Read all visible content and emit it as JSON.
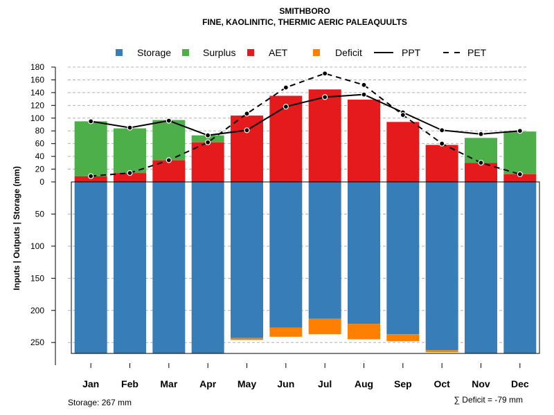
{
  "chart_data": {
    "type": "bar",
    "title": "SMITHBORO",
    "subtitle": "FINE, KAOLINITIC, THERMIC AERIC PALEAQUULTS",
    "ylabel": "Inputs | Outputs | Storage     (mm)",
    "categories": [
      "Jan",
      "Feb",
      "Mar",
      "Apr",
      "May",
      "Jun",
      "Jul",
      "Aug",
      "Sep",
      "Oct",
      "Nov",
      "Dec"
    ],
    "upper_ylim": [
      0,
      180
    ],
    "upper_ticks": [
      0,
      20,
      40,
      60,
      80,
      100,
      120,
      140,
      160,
      180
    ],
    "lower_ylim": [
      0,
      267
    ],
    "lower_ticks": [
      50,
      100,
      150,
      200,
      250
    ],
    "series": [
      {
        "name": "Storage",
        "color": "#377EB8",
        "values": [
          267,
          267,
          267,
          267,
          243,
          227,
          213,
          221,
          237,
          262,
          267,
          267
        ]
      },
      {
        "name": "Surplus",
        "color": "#4DAF4A",
        "values": [
          86,
          70,
          63,
          11,
          0,
          0,
          0,
          0,
          0,
          0,
          39,
          67
        ]
      },
      {
        "name": "AET",
        "color": "#E41A1C",
        "values": [
          9,
          14,
          34,
          62,
          104,
          135,
          145,
          129,
          94,
          58,
          30,
          12
        ]
      },
      {
        "name": "Deficit",
        "color": "#FF7F00",
        "values": [
          0,
          0,
          0,
          0,
          3,
          14,
          24,
          24,
          11,
          3,
          0,
          0
        ]
      },
      {
        "name": "PPT",
        "color": "#000000",
        "line": "solid",
        "values": [
          95,
          85,
          96,
          73,
          81,
          118,
          133,
          137,
          109,
          81,
          75,
          80
        ]
      },
      {
        "name": "PET",
        "color": "#000000",
        "line": "dashed",
        "values": [
          9,
          14,
          34,
          62,
          107,
          148,
          170,
          152,
          105,
          60,
          30,
          12
        ]
      }
    ],
    "legend": [
      "Storage",
      "Surplus",
      "AET",
      "Deficit",
      "PPT",
      "PET"
    ],
    "storage_note": "Storage: 267 mm",
    "deficit_note": "∑ Deficit = -79 mm"
  }
}
